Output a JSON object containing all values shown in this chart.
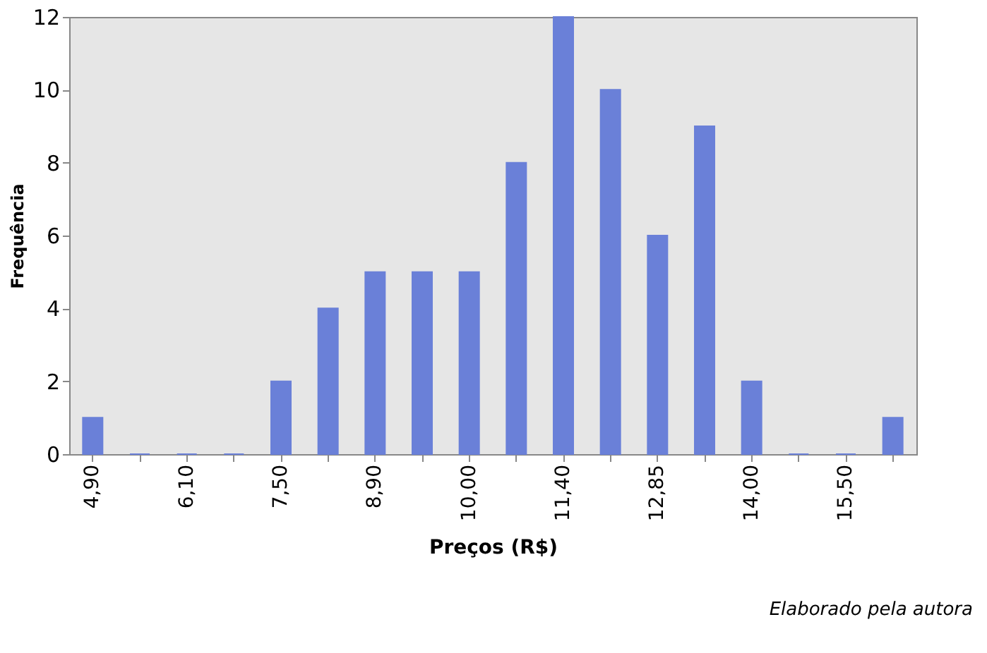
{
  "chart_data": {
    "type": "bar",
    "xlabel": "Preços (R$)",
    "ylabel": "Frequência",
    "categories": [
      "4,90",
      null,
      "6,10",
      null,
      "7,50",
      null,
      "8,90",
      null,
      "10,00",
      null,
      "11,40",
      null,
      "12,85",
      null,
      "14,00",
      null,
      "15,50",
      null
    ],
    "values": [
      1,
      0,
      0,
      0,
      2,
      4,
      5,
      5,
      5,
      8,
      12,
      10,
      6,
      9,
      2,
      0,
      0,
      1
    ],
    "color": "#6a80d8",
    "ylim": [
      0,
      12
    ],
    "yticks": [
      0,
      2,
      4,
      6,
      8,
      10,
      12
    ],
    "grid": false,
    "annotations": [
      "Elaborado pela autora"
    ]
  }
}
